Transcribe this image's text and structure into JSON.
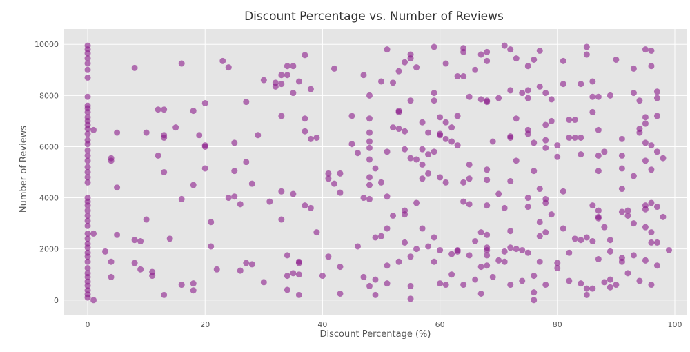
{
  "chart_data": {
    "type": "scatter",
    "title": "Discount Percentage vs. Number of Reviews",
    "xlabel": "Discount Percentage (%)",
    "ylabel": "Number of Reviews",
    "xlim": [
      -4,
      102
    ],
    "ylim": [
      -600,
      10600
    ],
    "xticks": [
      0,
      20,
      40,
      60,
      80,
      100
    ],
    "yticks": [
      0,
      2000,
      4000,
      6000,
      8000,
      10000
    ],
    "grid": true,
    "legend": "none",
    "marker_color": "#8b1a8b",
    "plot_background": "#e5e5e5",
    "points": [
      [
        0,
        100
      ],
      [
        0,
        220
      ],
      [
        0,
        380
      ],
      [
        0,
        560
      ],
      [
        0,
        720
      ],
      [
        0,
        900
      ],
      [
        0,
        1050
      ],
      [
        0,
        1250
      ],
      [
        0,
        1500
      ],
      [
        0,
        1700
      ],
      [
        0,
        1850
      ],
      [
        0,
        2050
      ],
      [
        0,
        2200
      ],
      [
        0,
        2400
      ],
      [
        0,
        2600
      ],
      [
        0,
        2900
      ],
      [
        0,
        3100
      ],
      [
        0,
        3300
      ],
      [
        0,
        3500
      ],
      [
        0,
        3700
      ],
      [
        0,
        3850
      ],
      [
        0,
        4000
      ],
      [
        0,
        4600
      ],
      [
        0,
        4800
      ],
      [
        0,
        5000
      ],
      [
        0,
        5200
      ],
      [
        0,
        5450
      ],
      [
        0,
        5650
      ],
      [
        0,
        5850
      ],
      [
        0,
        6100
      ],
      [
        0,
        6250
      ],
      [
        0,
        6500
      ],
      [
        0,
        6700
      ],
      [
        0,
        6850
      ],
      [
        0,
        7000
      ],
      [
        0,
        7150
      ],
      [
        0,
        7350
      ],
      [
        0,
        7500
      ],
      [
        0,
        7600
      ],
      [
        0,
        7950
      ],
      [
        0,
        8700
      ],
      [
        0,
        9000
      ],
      [
        0,
        9250
      ],
      [
        0,
        9450
      ],
      [
        0,
        9650
      ],
      [
        0,
        9800
      ],
      [
        0,
        9950
      ],
      [
        1,
        0
      ],
      [
        1,
        2600
      ],
      [
        1,
        6650
      ],
      [
        3,
        1900
      ],
      [
        4,
        900
      ],
      [
        4,
        1500
      ],
      [
        4,
        5450
      ],
      [
        4,
        5550
      ],
      [
        5,
        2550
      ],
      [
        5,
        4400
      ],
      [
        5,
        6550
      ],
      [
        8,
        9080
      ],
      [
        8,
        2350
      ],
      [
        8,
        1450
      ],
      [
        9,
        2300
      ],
      [
        9,
        1200
      ],
      [
        10,
        3150
      ],
      [
        10,
        6550
      ],
      [
        11,
        1100
      ],
      [
        11,
        950
      ],
      [
        12,
        5650
      ],
      [
        12,
        7450
      ],
      [
        13,
        7450
      ],
      [
        13,
        6450
      ],
      [
        13,
        6350
      ],
      [
        13,
        5000
      ],
      [
        13,
        200
      ],
      [
        14,
        2400
      ],
      [
        15,
        6750
      ],
      [
        16,
        9250
      ],
      [
        16,
        3950
      ],
      [
        16,
        600
      ],
      [
        18,
        7400
      ],
      [
        18,
        4500
      ],
      [
        18,
        650
      ],
      [
        18,
        380
      ],
      [
        19,
        6450
      ],
      [
        20,
        7700
      ],
      [
        20,
        6000
      ],
      [
        20,
        6050
      ],
      [
        20,
        5150
      ],
      [
        21,
        3050
      ],
      [
        21,
        2100
      ],
      [
        22,
        1200
      ],
      [
        23,
        9350
      ],
      [
        24,
        9100
      ],
      [
        24,
        4000
      ],
      [
        25,
        6150
      ],
      [
        25,
        5050
      ],
      [
        25,
        4050
      ],
      [
        26,
        3750
      ],
      [
        26,
        1150
      ],
      [
        27,
        7750
      ],
      [
        27,
        5400
      ],
      [
        27,
        1450
      ],
      [
        28,
        4550
      ],
      [
        28,
        1400
      ],
      [
        29,
        6450
      ],
      [
        30,
        8600
      ],
      [
        30,
        700
      ],
      [
        31,
        3850
      ],
      [
        32,
        8500
      ],
      [
        32,
        8350
      ],
      [
        33,
        8800
      ],
      [
        33,
        8450
      ],
      [
        33,
        7200
      ],
      [
        33,
        4250
      ],
      [
        33,
        3150
      ],
      [
        34,
        8800
      ],
      [
        34,
        9150
      ],
      [
        34,
        1750
      ],
      [
        34,
        950
      ],
      [
        34,
        400
      ],
      [
        35,
        9150
      ],
      [
        35,
        8100
      ],
      [
        35,
        4150
      ],
      [
        35,
        1050
      ],
      [
        36,
        8550
      ],
      [
        36,
        1500
      ],
      [
        36,
        1450
      ],
      [
        36,
        1000
      ],
      [
        36,
        200
      ],
      [
        37,
        9580
      ],
      [
        37,
        7100
      ],
      [
        37,
        6600
      ],
      [
        37,
        3700
      ],
      [
        38,
        8250
      ],
      [
        38,
        6300
      ],
      [
        38,
        3600
      ],
      [
        39,
        6350
      ],
      [
        39,
        2650
      ],
      [
        40,
        950
      ],
      [
        41,
        4950
      ],
      [
        41,
        4750
      ],
      [
        41,
        1700
      ],
      [
        42,
        9050
      ],
      [
        42,
        4550
      ],
      [
        43,
        4950
      ],
      [
        43,
        4200
      ],
      [
        43,
        1300
      ],
      [
        43,
        250
      ],
      [
        45,
        7200
      ],
      [
        45,
        6100
      ],
      [
        46,
        5750
      ],
      [
        46,
        2100
      ],
      [
        47,
        8800
      ],
      [
        47,
        4000
      ],
      [
        47,
        900
      ],
      [
        48,
        6550
      ],
      [
        48,
        6200
      ],
      [
        48,
        5500
      ],
      [
        48,
        4800
      ],
      [
        48,
        4500
      ],
      [
        48,
        3950
      ],
      [
        48,
        5950
      ],
      [
        48,
        7100
      ],
      [
        48,
        8000
      ],
      [
        48,
        550
      ],
      [
        49,
        5150
      ],
      [
        49,
        2450
      ],
      [
        49,
        800
      ],
      [
        49,
        200
      ],
      [
        50,
        8550
      ],
      [
        50,
        4600
      ],
      [
        50,
        2500
      ],
      [
        51,
        9800
      ],
      [
        51,
        5800
      ],
      [
        51,
        2800
      ],
      [
        51,
        1350
      ],
      [
        51,
        4050
      ],
      [
        51,
        650
      ],
      [
        52,
        8500
      ],
      [
        52,
        6750
      ],
      [
        52,
        3300
      ],
      [
        53,
        8950
      ],
      [
        53,
        7350
      ],
      [
        53,
        7400
      ],
      [
        53,
        6700
      ],
      [
        53,
        1500
      ],
      [
        54,
        9300
      ],
      [
        54,
        6600
      ],
      [
        54,
        5900
      ],
      [
        54,
        3500
      ],
      [
        54,
        3350
      ],
      [
        54,
        2250
      ],
      [
        55,
        9600
      ],
      [
        55,
        9450
      ],
      [
        55,
        7800
      ],
      [
        55,
        5550
      ],
      [
        55,
        1700
      ],
      [
        55,
        550
      ],
      [
        55,
        50
      ],
      [
        56,
        9100
      ],
      [
        56,
        5500
      ],
      [
        56,
        2000
      ],
      [
        56,
        3800
      ],
      [
        57,
        6950
      ],
      [
        57,
        5900
      ],
      [
        57,
        5300
      ],
      [
        57,
        4750
      ],
      [
        57,
        2800
      ],
      [
        58,
        6550
      ],
      [
        58,
        5700
      ],
      [
        58,
        4950
      ],
      [
        58,
        2100
      ],
      [
        59,
        9900
      ],
      [
        59,
        8100
      ],
      [
        59,
        7800
      ],
      [
        59,
        5800
      ],
      [
        59,
        1500
      ],
      [
        59,
        2450
      ],
      [
        60,
        7150
      ],
      [
        60,
        6500
      ],
      [
        60,
        6450
      ],
      [
        60,
        4800
      ],
      [
        60,
        1950
      ],
      [
        60,
        650
      ],
      [
        61,
        9250
      ],
      [
        61,
        6950
      ],
      [
        61,
        6300
      ],
      [
        61,
        4600
      ],
      [
        61,
        600
      ],
      [
        62,
        6750
      ],
      [
        62,
        6200
      ],
      [
        62,
        1800
      ],
      [
        62,
        1000
      ],
      [
        63,
        8750
      ],
      [
        63,
        7200
      ],
      [
        63,
        6050
      ],
      [
        63,
        1950
      ],
      [
        63,
        1900
      ],
      [
        64,
        9700
      ],
      [
        64,
        9850
      ],
      [
        64,
        8750
      ],
      [
        64,
        4600
      ],
      [
        64,
        3850
      ],
      [
        64,
        600
      ],
      [
        65,
        7950
      ],
      [
        65,
        5300
      ],
      [
        65,
        4750
      ],
      [
        65,
        3750
      ],
      [
        65,
        1750
      ],
      [
        66,
        9000
      ],
      [
        66,
        2300
      ],
      [
        66,
        800
      ],
      [
        67,
        9600
      ],
      [
        67,
        7850
      ],
      [
        67,
        1300
      ],
      [
        67,
        2650
      ],
      [
        67,
        250
      ],
      [
        68,
        9700
      ],
      [
        68,
        7800
      ],
      [
        68,
        7750
      ],
      [
        68,
        9350
      ],
      [
        68,
        5100
      ],
      [
        68,
        4700
      ],
      [
        68,
        3700
      ],
      [
        68,
        2550
      ],
      [
        68,
        2050
      ],
      [
        68,
        1950
      ],
      [
        68,
        1750
      ],
      [
        68,
        1350
      ],
      [
        69,
        6200
      ],
      [
        69,
        900
      ],
      [
        70,
        7900
      ],
      [
        70,
        4150
      ],
      [
        70,
        1550
      ],
      [
        71,
        9950
      ],
      [
        71,
        3600
      ],
      [
        71,
        1900
      ],
      [
        71,
        1500
      ],
      [
        72,
        9800
      ],
      [
        72,
        8200
      ],
      [
        72,
        6400
      ],
      [
        72,
        6350
      ],
      [
        72,
        4650
      ],
      [
        72,
        2700
      ],
      [
        72,
        2050
      ],
      [
        72,
        600
      ],
      [
        73,
        9450
      ],
      [
        73,
        7100
      ],
      [
        73,
        5450
      ],
      [
        73,
        2000
      ],
      [
        74,
        8100
      ],
      [
        74,
        1950
      ],
      [
        74,
        750
      ],
      [
        75,
        9150
      ],
      [
        75,
        8200
      ],
      [
        75,
        7900
      ],
      [
        75,
        6650
      ],
      [
        75,
        6500
      ],
      [
        75,
        4000
      ],
      [
        75,
        3650
      ],
      [
        75,
        1850
      ],
      [
        76,
        9400
      ],
      [
        76,
        6150
      ],
      [
        76,
        5050
      ],
      [
        76,
        950
      ],
      [
        76,
        300
      ],
      [
        76,
        0
      ],
      [
        77,
        9750
      ],
      [
        77,
        8350
      ],
      [
        77,
        4350
      ],
      [
        77,
        3050
      ],
      [
        77,
        2500
      ],
      [
        77,
        1500
      ],
      [
        78,
        8100
      ],
      [
        78,
        6850
      ],
      [
        78,
        6250
      ],
      [
        78,
        5950
      ],
      [
        78,
        3950
      ],
      [
        78,
        3800
      ],
      [
        78,
        2650
      ],
      [
        78,
        600
      ],
      [
        79,
        7850
      ],
      [
        79,
        7000
      ],
      [
        79,
        3350
      ],
      [
        80,
        6050
      ],
      [
        80,
        5600
      ],
      [
        80,
        1450
      ],
      [
        80,
        1250
      ],
      [
        81,
        9350
      ],
      [
        81,
        8450
      ],
      [
        81,
        4250
      ],
      [
        81,
        2800
      ],
      [
        82,
        7050
      ],
      [
        82,
        6350
      ],
      [
        82,
        1850
      ],
      [
        82,
        750
      ],
      [
        83,
        7050
      ],
      [
        83,
        6350
      ],
      [
        83,
        2400
      ],
      [
        84,
        8450
      ],
      [
        84,
        6350
      ],
      [
        84,
        5700
      ],
      [
        84,
        2350
      ],
      [
        84,
        650
      ],
      [
        85,
        9900
      ],
      [
        85,
        9600
      ],
      [
        85,
        2450
      ],
      [
        85,
        450
      ],
      [
        85,
        200
      ],
      [
        86,
        8550
      ],
      [
        86,
        7950
      ],
      [
        86,
        7350
      ],
      [
        86,
        3700
      ],
      [
        86,
        2300
      ],
      [
        86,
        450
      ],
      [
        87,
        7950
      ],
      [
        87,
        6650
      ],
      [
        87,
        5650
      ],
      [
        87,
        5050
      ],
      [
        87,
        3500
      ],
      [
        87,
        3250
      ],
      [
        87,
        3200
      ],
      [
        87,
        1600
      ],
      [
        88,
        5800
      ],
      [
        88,
        2850
      ],
      [
        88,
        700
      ],
      [
        89,
        8000
      ],
      [
        89,
        2350
      ],
      [
        89,
        1900
      ],
      [
        89,
        800
      ],
      [
        89,
        500
      ],
      [
        90,
        9400
      ],
      [
        90,
        600
      ],
      [
        91,
        6300
      ],
      [
        91,
        5650
      ],
      [
        91,
        5150
      ],
      [
        91,
        4350
      ],
      [
        91,
        3450
      ],
      [
        91,
        1650
      ],
      [
        91,
        1500
      ],
      [
        92,
        3500
      ],
      [
        92,
        3300
      ],
      [
        92,
        1050
      ],
      [
        93,
        9050
      ],
      [
        93,
        8100
      ],
      [
        93,
        4850
      ],
      [
        93,
        3000
      ],
      [
        93,
        1750
      ],
      [
        94,
        7800
      ],
      [
        94,
        6700
      ],
      [
        94,
        6550
      ],
      [
        94,
        750
      ],
      [
        95,
        9800
      ],
      [
        95,
        7150
      ],
      [
        95,
        6900
      ],
      [
        95,
        6150
      ],
      [
        95,
        3700
      ],
      [
        95,
        3550
      ],
      [
        95,
        2850
      ],
      [
        95,
        1550
      ],
      [
        95,
        5450
      ],
      [
        96,
        9750
      ],
      [
        96,
        9150
      ],
      [
        96,
        6050
      ],
      [
        96,
        5100
      ],
      [
        96,
        3800
      ],
      [
        96,
        2250
      ],
      [
        96,
        2650
      ],
      [
        96,
        600
      ],
      [
        97,
        8150
      ],
      [
        97,
        7900
      ],
      [
        97,
        7200
      ],
      [
        97,
        5800
      ],
      [
        97,
        3650
      ],
      [
        97,
        2250
      ],
      [
        97,
        1350
      ],
      [
        98,
        5550
      ],
      [
        98,
        3250
      ],
      [
        99,
        1950
      ]
    ]
  }
}
